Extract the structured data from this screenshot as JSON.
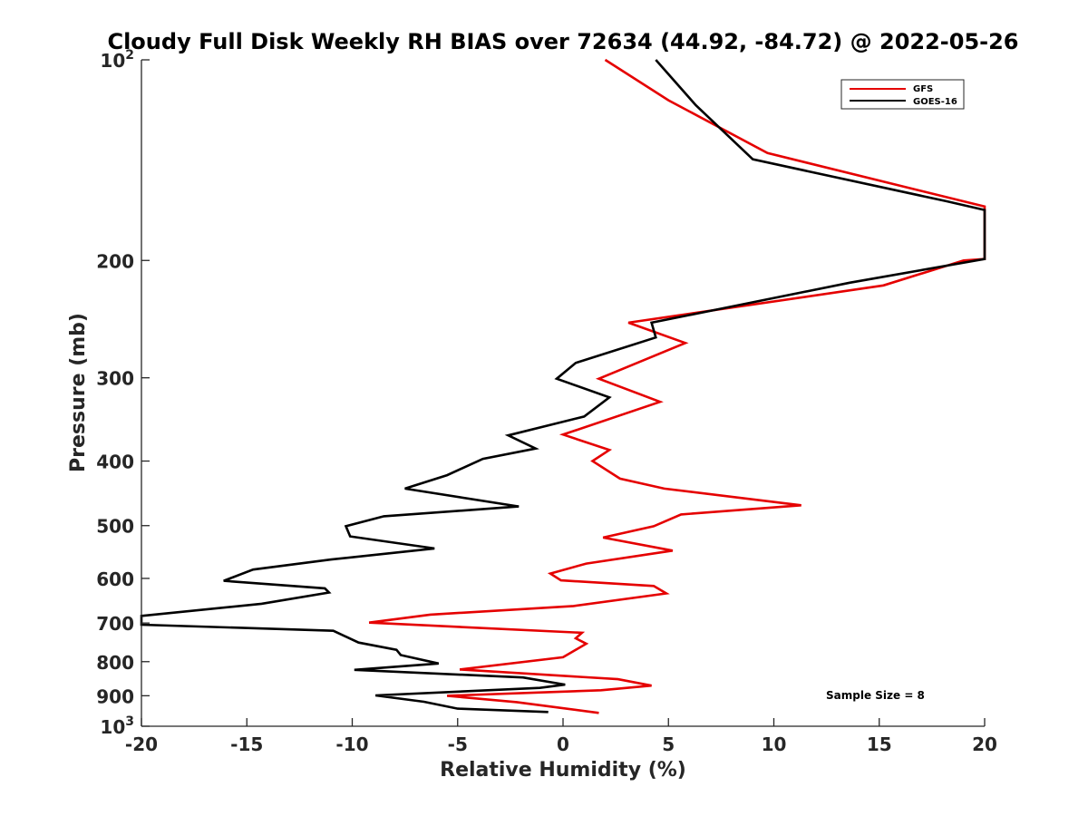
{
  "chart_data": {
    "type": "line",
    "title": "Cloudy Full Disk Weekly RH BIAS over 72634 (44.92, -84.72) @ 2022-05-26",
    "xlabel": "Relative Humidity (%)",
    "ylabel": "Pressure (mb)",
    "xlim": [
      -20,
      20
    ],
    "ylim": [
      100,
      1000
    ],
    "yscale": "log",
    "y_reversed": true,
    "grid": false,
    "legend_placement": "top-right",
    "x_ticks": [
      -20,
      -15,
      -10,
      -5,
      0,
      5,
      10,
      15,
      20
    ],
    "x_tick_labels": [
      "-20",
      "-15",
      "-10",
      "-5",
      "0",
      "5",
      "10",
      "15",
      "20"
    ],
    "y_ticks": [
      100,
      200,
      300,
      400,
      500,
      600,
      700,
      800,
      900,
      1000
    ],
    "y_tick_labels": [
      {
        "base": "10",
        "sup": "2"
      },
      {
        "base": "200",
        "sup": ""
      },
      {
        "base": "300",
        "sup": ""
      },
      {
        "base": "400",
        "sup": ""
      },
      {
        "base": "500",
        "sup": ""
      },
      {
        "base": "600",
        "sup": ""
      },
      {
        "base": "700",
        "sup": ""
      },
      {
        "base": "800",
        "sup": ""
      },
      {
        "base": "900",
        "sup": ""
      },
      {
        "base": "10",
        "sup": "3"
      }
    ],
    "annotation": "Sample Size = 8",
    "series": [
      {
        "name": "GFS",
        "color": "#e50000",
        "points": [
          {
            "x": 2.0,
            "p": 100
          },
          {
            "x": 5.0,
            "p": 115
          },
          {
            "x": 9.7,
            "p": 138
          },
          {
            "x": 20.0,
            "p": 166
          },
          {
            "x": 20.0,
            "p": 199
          },
          {
            "x": 19.0,
            "p": 200
          },
          {
            "x": 15.2,
            "p": 218
          },
          {
            "x": 3.1,
            "p": 248
          },
          {
            "x": 5.8,
            "p": 266
          },
          {
            "x": 1.7,
            "p": 301
          },
          {
            "x": 4.6,
            "p": 326
          },
          {
            "x": 0.0,
            "p": 365
          },
          {
            "x": 2.2,
            "p": 385
          },
          {
            "x": 1.4,
            "p": 400
          },
          {
            "x": 2.7,
            "p": 425
          },
          {
            "x": 4.8,
            "p": 440
          },
          {
            "x": 11.3,
            "p": 466
          },
          {
            "x": 5.6,
            "p": 481
          },
          {
            "x": 4.3,
            "p": 501
          },
          {
            "x": 1.9,
            "p": 521
          },
          {
            "x": 5.2,
            "p": 545
          },
          {
            "x": 1.1,
            "p": 570
          },
          {
            "x": -0.6,
            "p": 590
          },
          {
            "x": -0.1,
            "p": 604
          },
          {
            "x": 4.3,
            "p": 616
          },
          {
            "x": 4.9,
            "p": 632
          },
          {
            "x": 0.5,
            "p": 660
          },
          {
            "x": -6.3,
            "p": 680
          },
          {
            "x": -9.2,
            "p": 699
          },
          {
            "x": 0.9,
            "p": 724
          },
          {
            "x": 0.6,
            "p": 738
          },
          {
            "x": 1.1,
            "p": 752
          },
          {
            "x": 0.0,
            "p": 788
          },
          {
            "x": -4.9,
            "p": 822
          },
          {
            "x": 2.6,
            "p": 850
          },
          {
            "x": 4.2,
            "p": 869
          },
          {
            "x": 1.8,
            "p": 883
          },
          {
            "x": -5.5,
            "p": 900
          },
          {
            "x": -2.2,
            "p": 920
          },
          {
            "x": 1.7,
            "p": 955
          }
        ]
      },
      {
        "name": "GOES-16",
        "color": "#000000",
        "points": [
          {
            "x": 4.4,
            "p": 100
          },
          {
            "x": 6.3,
            "p": 117
          },
          {
            "x": 9.0,
            "p": 141
          },
          {
            "x": 18.2,
            "p": 163
          },
          {
            "x": 20.0,
            "p": 168
          },
          {
            "x": 20.0,
            "p": 199
          },
          {
            "x": 13.6,
            "p": 216
          },
          {
            "x": 4.2,
            "p": 248
          },
          {
            "x": 4.4,
            "p": 261
          },
          {
            "x": 0.6,
            "p": 285
          },
          {
            "x": -0.3,
            "p": 301
          },
          {
            "x": 2.2,
            "p": 321
          },
          {
            "x": 1.0,
            "p": 343
          },
          {
            "x": -2.6,
            "p": 366
          },
          {
            "x": -1.3,
            "p": 383
          },
          {
            "x": -3.8,
            "p": 397
          },
          {
            "x": -5.5,
            "p": 420
          },
          {
            "x": -7.5,
            "p": 440
          },
          {
            "x": -2.1,
            "p": 468
          },
          {
            "x": -8.5,
            "p": 484
          },
          {
            "x": -10.3,
            "p": 501
          },
          {
            "x": -10.1,
            "p": 519
          },
          {
            "x": -6.1,
            "p": 541
          },
          {
            "x": -11.0,
            "p": 562
          },
          {
            "x": -14.7,
            "p": 582
          },
          {
            "x": -16.1,
            "p": 605
          },
          {
            "x": -11.3,
            "p": 621
          },
          {
            "x": -11.1,
            "p": 630
          },
          {
            "x": -14.3,
            "p": 655
          },
          {
            "x": -20.0,
            "p": 683
          },
          {
            "x": -20.0,
            "p": 704
          },
          {
            "x": -10.9,
            "p": 719
          },
          {
            "x": -9.7,
            "p": 749
          },
          {
            "x": -7.9,
            "p": 768
          },
          {
            "x": -7.7,
            "p": 782
          },
          {
            "x": -5.9,
            "p": 805
          },
          {
            "x": -9.9,
            "p": 823
          },
          {
            "x": -1.9,
            "p": 845
          },
          {
            "x": 0.1,
            "p": 866
          },
          {
            "x": -1.1,
            "p": 876
          },
          {
            "x": -8.9,
            "p": 899
          },
          {
            "x": -6.6,
            "p": 919
          },
          {
            "x": -5.0,
            "p": 941
          },
          {
            "x": -0.7,
            "p": 952
          }
        ]
      }
    ]
  }
}
